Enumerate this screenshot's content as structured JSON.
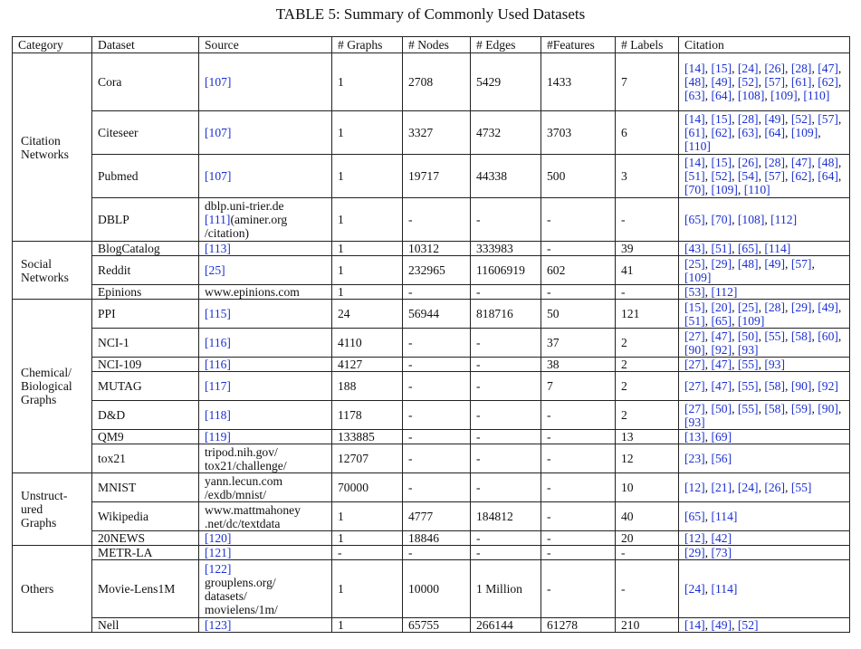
{
  "caption": "TABLE 5: Summary of Commonly Used Datasets",
  "headers": [
    "Category",
    "Dataset",
    "Source",
    "# Graphs",
    "# Nodes",
    "# Edges",
    "#Features",
    "# Labels",
    "Citation"
  ],
  "groups": [
    {
      "category": [
        "Citation",
        "Networks"
      ],
      "rows": [
        {
          "dataset": "Cora",
          "source": [
            "[107]"
          ],
          "graphs": "1",
          "nodes": "2708",
          "edges": "5429",
          "features": "1433",
          "labels": "7",
          "citation": [
            "[14]",
            "[15]",
            "[24]",
            "[26]",
            "[28]",
            "[47]",
            "[48]",
            "[49]",
            "[52]",
            "[57]",
            "[61]",
            "[62]",
            "[63]",
            "[64]",
            "[108]",
            "[109]",
            "[110]"
          ],
          "h": 64
        },
        {
          "dataset": "Citeseer",
          "source": [
            "[107]"
          ],
          "graphs": "1",
          "nodes": "3327",
          "edges": "4732",
          "features": "3703",
          "labels": "6",
          "citation": [
            "[14]",
            "[15]",
            "[28]",
            "[49]",
            "[52]",
            "[57]",
            "[61]",
            "[62]",
            "[63]",
            "[64]",
            "[109]",
            "[110]"
          ],
          "h": 48
        },
        {
          "dataset": "Pubmed",
          "source": [
            "[107]"
          ],
          "graphs": "1",
          "nodes": "19717",
          "edges": "44338",
          "features": "500",
          "labels": "3",
          "citation": [
            "[14]",
            "[15]",
            "[26]",
            "[28]",
            "[47]",
            "[48]",
            "[51]",
            "[52]",
            "[54]",
            "[57]",
            "[62]",
            "[64]",
            "[70]",
            "[109]",
            "[110]"
          ],
          "h": 48
        },
        {
          "dataset": "DBLP",
          "source": [
            "dblp.uni-trier.de",
            "[111]",
            "(aminer.org",
            "/citation)"
          ],
          "graphs": "1",
          "nodes": "-",
          "edges": "-",
          "features": "-",
          "labels": "-",
          "citation": [
            "[65]",
            "[70]",
            "[108]",
            "[112]"
          ],
          "h": 48
        }
      ]
    },
    {
      "category": [
        "Social",
        "Networks"
      ],
      "rows": [
        {
          "dataset": "BlogCatalog",
          "source": [
            "[113]"
          ],
          "graphs": "1",
          "nodes": "10312",
          "edges": "333983",
          "features": "-",
          "labels": "39",
          "citation": [
            "[43]",
            "[51]",
            "[65]",
            "[114]"
          ],
          "h": 16
        },
        {
          "dataset": "Reddit",
          "source": [
            "[25]"
          ],
          "graphs": "1",
          "nodes": "232965",
          "edges": "11606919",
          "features": "602",
          "labels": "41",
          "citation": [
            "[25]",
            "[29]",
            "[48]",
            "[49]",
            "[57]",
            "[109]"
          ],
          "h": 32
        },
        {
          "dataset": "Epinions",
          "source": [
            "www.epinions.com"
          ],
          "graphs": "1",
          "nodes": "-",
          "edges": "-",
          "features": "-",
          "labels": "-",
          "citation": [
            "[53]",
            "[112]"
          ],
          "h": 16
        }
      ]
    },
    {
      "category": [
        "Chemical/",
        "Biological",
        "Graphs"
      ],
      "rows": [
        {
          "dataset": "PPI",
          "source": [
            "[115]"
          ],
          "graphs": "24",
          "nodes": "56944",
          "edges": "818716",
          "features": "50",
          "labels": "121",
          "citation": [
            "[15]",
            "[20]",
            "[25]",
            "[28]",
            "[29]",
            "[49]",
            "[51]",
            "[65]",
            "[109]"
          ],
          "h": 32
        },
        {
          "dataset": "NCI-1",
          "source": [
            "[116]"
          ],
          "graphs": "4110",
          "nodes": "-",
          "edges": "-",
          "features": "37",
          "labels": "2",
          "citation": [
            "[27]",
            "[47]",
            "[50]",
            "[55]",
            "[58]",
            "[60]",
            "[90]",
            "[92]",
            "[93]"
          ],
          "h": 32
        },
        {
          "dataset": "NCI-109",
          "source": [
            "[116]"
          ],
          "graphs": "4127",
          "nodes": "-",
          "edges": "-",
          "features": "38",
          "labels": "2",
          "citation": [
            "[27]",
            "[47]",
            "[55]",
            "[93]"
          ],
          "h": 16
        },
        {
          "dataset": "MUTAG",
          "source": [
            "[117]"
          ],
          "graphs": "188",
          "nodes": "-",
          "edges": "-",
          "features": "7",
          "labels": "2",
          "citation": [
            "[27]",
            "[47]",
            "[55]",
            "[58]",
            "[90]",
            "[92]"
          ],
          "h": 32
        },
        {
          "dataset": "D&D",
          "source": [
            "[118]"
          ],
          "graphs": "1178",
          "nodes": "-",
          "edges": "-",
          "features": "-",
          "labels": "2",
          "citation": [
            "[27]",
            "[50]",
            "[55]",
            "[58]",
            "[59]",
            "[90]",
            "[93]"
          ],
          "h": 32
        },
        {
          "dataset": "QM9",
          "source": [
            "[119]"
          ],
          "graphs": "133885",
          "nodes": "-",
          "edges": "-",
          "features": "-",
          "labels": "13",
          "citation": [
            "[13]",
            "[69]"
          ],
          "h": 16
        },
        {
          "dataset": "tox21",
          "source": [
            "tripod.nih.gov/",
            "tox21/challenge/"
          ],
          "graphs": "12707",
          "nodes": "-",
          "edges": "-",
          "features": "-",
          "labels": "12",
          "citation": [
            "[23]",
            "[56]"
          ],
          "h": 32
        }
      ]
    },
    {
      "category": [
        "Unstruct-",
        "ured",
        "Graphs"
      ],
      "rows": [
        {
          "dataset": "MNIST",
          "source": [
            "yann.lecun.com",
            "/exdb/mnist/"
          ],
          "graphs": "70000",
          "nodes": "-",
          "edges": "-",
          "features": "-",
          "labels": "10",
          "citation": [
            "[12]",
            "[21]",
            "[24]",
            "[26]",
            "[55]"
          ],
          "h": 32
        },
        {
          "dataset": "Wikipedia",
          "source": [
            "www.mattmahoney",
            ".net/dc/textdata"
          ],
          "graphs": "1",
          "nodes": "4777",
          "edges": "184812",
          "features": "-",
          "labels": "40",
          "citation": [
            "[65]",
            "[114]"
          ],
          "h": 32
        },
        {
          "dataset": "20NEWS",
          "source": [
            "[120]"
          ],
          "graphs": "1",
          "nodes": "18846",
          "edges": "-",
          "features": "-",
          "labels": "20",
          "citation": [
            "[12]",
            "[42]"
          ],
          "h": 16
        }
      ]
    },
    {
      "category": [
        "Others"
      ],
      "rows": [
        {
          "dataset": "METR-LA",
          "source": [
            "[121]"
          ],
          "graphs": "-",
          "nodes": "-",
          "edges": "-",
          "features": "-",
          "labels": "-",
          "citation": [
            "[29]",
            "[73]"
          ],
          "h": 16
        },
        {
          "dataset": "Movie-Lens1M",
          "source": [
            "[122]",
            "grouplens.org/",
            "datasets/",
            "movielens/1m/"
          ],
          "graphs": "1",
          "nodes": "10000",
          "edges": "1 Million",
          "features": "-",
          "labels": "-",
          "citation": [
            "[24]",
            "[114]"
          ],
          "h": 64
        },
        {
          "dataset": "Nell",
          "source": [
            "[123]"
          ],
          "graphs": "1",
          "nodes": "65755",
          "edges": "266144",
          "features": "61278",
          "labels": "210",
          "citation": [
            "[14]",
            "[49]",
            "[52]"
          ],
          "h": 16
        }
      ]
    }
  ]
}
